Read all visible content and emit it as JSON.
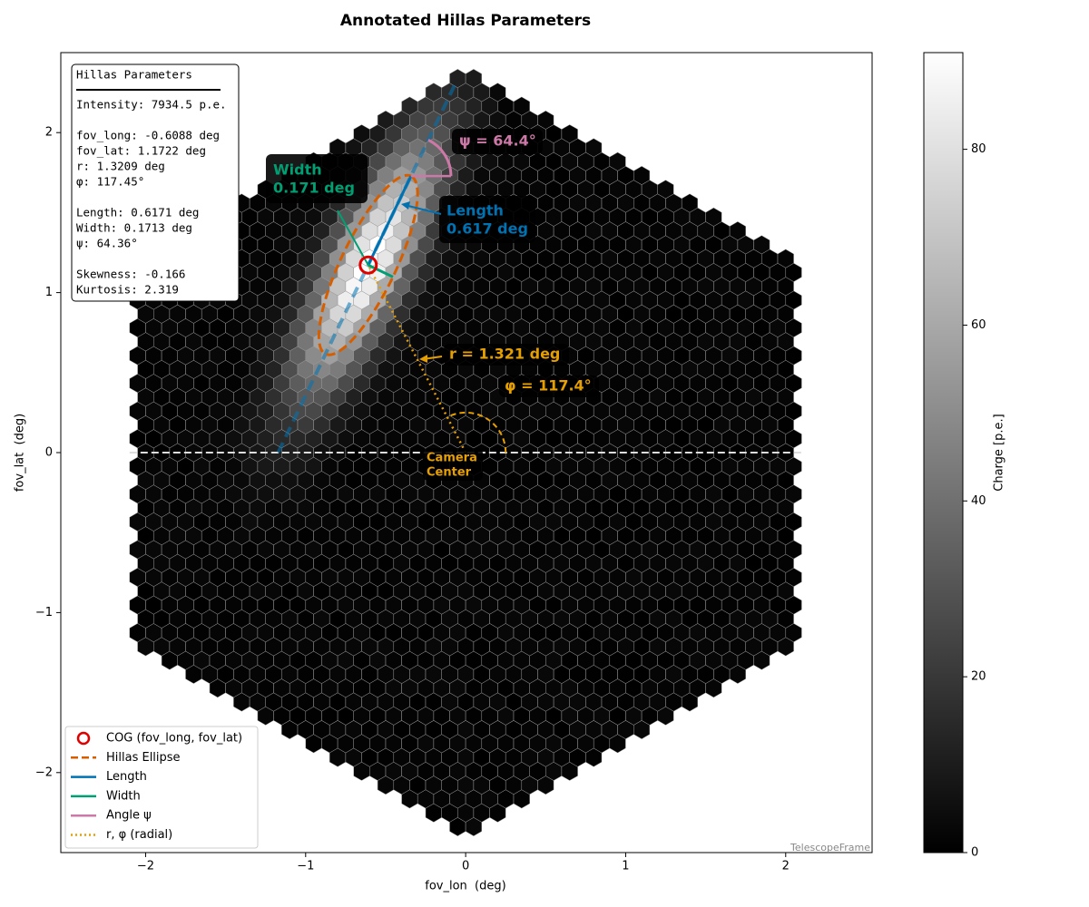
{
  "chart_data": {
    "type": "camera",
    "title": "Annotated Hillas Parameters",
    "x_label": "fov_lon  (deg)",
    "y_label": "fov_lat  (deg)",
    "colorbar_label": "Charge [p.e.]",
    "frame_label": "TelescopeFrame",
    "colormap": "gray",
    "xlim": [
      -2.53,
      2.54
    ],
    "ylim": [
      -2.5,
      2.5
    ],
    "clim": [
      0,
      91
    ],
    "xticks": [
      {
        "value": -2,
        "label": "−2"
      },
      {
        "value": -1,
        "label": "−1"
      },
      0,
      1,
      2
    ],
    "yticks": [
      {
        "value": -2,
        "label": "−2"
      },
      {
        "value": -1,
        "label": "−1"
      },
      0,
      1,
      2
    ],
    "cticks": [
      0,
      20,
      40,
      60,
      80
    ],
    "hillas": {
      "intensity": 7934.5,
      "fov_long": -0.6088,
      "fov_lat": 1.1722,
      "r": 1.3209,
      "phi": 117.45,
      "length": 0.6171,
      "width": 0.1713,
      "psi": 64.36,
      "skewness": -0.166,
      "kurtosis": 2.319
    },
    "info_box": [
      [
        "Hillas Parameters"
      ],
      [
        "Intensity: 7934.5 p.e."
      ],
      [
        "fov_long: -0.6088 deg",
        "fov_lat: 1.1722 deg",
        "r: 1.3209 deg",
        "φ: 117.45°"
      ],
      [
        "Length: 0.6171 deg",
        "Width: 0.1713 deg",
        "ψ: 64.36°"
      ],
      [
        "Skewness: -0.166",
        "Kurtosis: 2.319"
      ]
    ],
    "annotations": {
      "width": [
        "Width",
        "0.171 deg"
      ],
      "length": [
        "Length",
        "0.617 deg"
      ],
      "psi": "ψ = 64.4°",
      "r": "r = 1.321 deg",
      "phi": "φ = 117.4°",
      "center": [
        "Camera",
        "Center"
      ]
    },
    "legend": [
      {
        "name": "COG (fov_long, fov_lat)",
        "color": "#e00000"
      },
      {
        "name": "Hillas Ellipse",
        "color": "#d55e00"
      },
      {
        "name": "Length",
        "color": "#0072b2"
      },
      {
        "name": "Width",
        "color": "#009e73"
      },
      {
        "name": "Angle ψ",
        "color": "#cc79a7"
      },
      {
        "name": "r, φ (radial)",
        "color": "#e69f00"
      }
    ],
    "legend_position": "lower left"
  }
}
